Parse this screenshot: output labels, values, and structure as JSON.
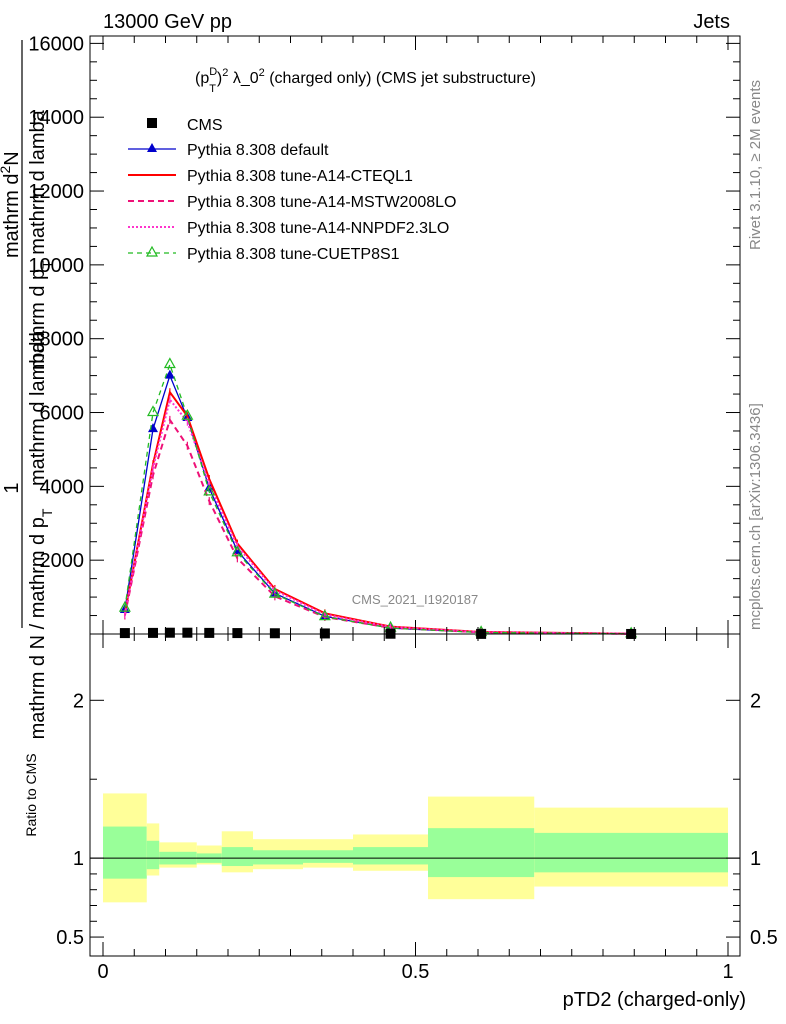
{
  "header": {
    "left": "13000 GeV pp",
    "right": "Jets"
  },
  "side": {
    "rivet": "Rivet 3.1.10, ≥ 2M events",
    "mcplots": "mcplots.cern.ch [arXiv:1306.3436]"
  },
  "watermark": "CMS_2021_I1920187",
  "ratio_ylabel": "Ratio to CMS",
  "colors": {
    "default": "#0000cc",
    "cteql1": "#ff0000",
    "mstw": "#ee1177",
    "nnpdf": "#ff33cc",
    "cuetp8s1": "#22bb22",
    "band_outer": "#ffff99",
    "band_inner": "#99ff99"
  },
  "chart_data": [
    {
      "type": "line",
      "title": "(p_T^D)^2 λ_0^2 (charged only) (CMS jet substructure)",
      "title_parts": {
        "p": "(p",
        "sub_T": "T",
        "sup_D": "D",
        "sup_2a": "2",
        "mid": " λ_0",
        "sup_2b": "2",
        "rest": " (charged only) (CMS jet substructure)"
      },
      "xlabel": "pTD2 (charged-only)",
      "ylabel_lines": [
        "mathrm d N / mathrm d p_T mathrm d lambda",
        "1",
        "mathrm d N / mathrm d p_T mathrm d lambda",
        "mathrm d^2N"
      ],
      "ylabel_fraction": {
        "num1": "1",
        "den1": "mathrm d N / mathrm d p",
        "den1_sub": "T",
        "num2_top": "mathrm d",
        "num2_sup": "2",
        "num2_rest": "N",
        "den2": "mathrm d p",
        "den2_sub": "T",
        "den2_rest": " mathrm d lamba"
      },
      "xlim": [
        0,
        1
      ],
      "ylim": [
        0,
        16200
      ],
      "yticks": [
        2000,
        4000,
        6000,
        8000,
        10000,
        12000,
        14000,
        16000
      ],
      "ytick_labels": [
        "2000",
        "4000",
        "6000",
        "8000",
        "10000",
        "12000",
        "14000",
        "16000"
      ],
      "legend_position": "top-left",
      "data_points": {
        "name": "CMS",
        "x": [
          0.035,
          0.08,
          0.107,
          0.135,
          0.17,
          0.215,
          0.275,
          0.355,
          0.46,
          0.605,
          0.845
        ],
        "y": [
          25,
          30,
          35,
          35,
          30,
          25,
          20,
          15,
          8,
          3,
          1
        ]
      },
      "series": [
        {
          "name": "Pythia 8.308 default",
          "key": "default",
          "dash": "",
          "marker": "triangle-filled",
          "x": [
            0.035,
            0.08,
            0.107,
            0.135,
            0.17,
            0.215,
            0.275,
            0.355,
            0.46,
            0.605,
            0.845
          ],
          "y": [
            650,
            5550,
            7000,
            5850,
            3950,
            2250,
            1100,
            480,
            160,
            40,
            5
          ]
        },
        {
          "name": "Pythia 8.308 tune-A14-CTEQL1",
          "key": "cteql1",
          "dash": "",
          "marker": "none",
          "x": [
            0.035,
            0.08,
            0.107,
            0.135,
            0.17,
            0.215,
            0.275,
            0.355,
            0.46,
            0.605,
            0.845
          ],
          "y": [
            560,
            4600,
            6550,
            5900,
            4200,
            2450,
            1220,
            560,
            200,
            55,
            7
          ]
        },
        {
          "name": "Pythia 8.308 tune-A14-MSTW2008LO",
          "key": "mstw",
          "dash": "6,4",
          "marker": "none",
          "x": [
            0.035,
            0.08,
            0.107,
            0.135,
            0.17,
            0.215,
            0.275,
            0.355,
            0.46,
            0.605,
            0.845
          ],
          "y": [
            500,
            4300,
            5800,
            5100,
            3600,
            2050,
            1020,
            460,
            170,
            45,
            6
          ]
        },
        {
          "name": "Pythia 8.308 tune-A14-NNPDF2.3LO",
          "key": "nnpdf",
          "dash": "2,2",
          "marker": "none",
          "x": [
            0.035,
            0.08,
            0.107,
            0.135,
            0.17,
            0.215,
            0.275,
            0.355,
            0.46,
            0.605,
            0.845
          ],
          "y": [
            540,
            4500,
            6350,
            5750,
            4050,
            2380,
            1180,
            530,
            190,
            50,
            6
          ]
        },
        {
          "name": "Pythia 8.308 tune-CUETP8S1",
          "key": "cuetp8s1",
          "dash": "5,4",
          "marker": "triangle-open",
          "x": [
            0.035,
            0.08,
            0.107,
            0.135,
            0.17,
            0.215,
            0.275,
            0.355,
            0.46,
            0.605,
            0.845
          ],
          "y": [
            700,
            6000,
            7300,
            5900,
            3850,
            2200,
            1080,
            470,
            160,
            40,
            5
          ]
        }
      ]
    },
    {
      "type": "area",
      "ylabel": "Ratio to CMS",
      "xlabel": "pTD2 (charged-only)",
      "xlim": [
        -0.04,
        1.04
      ],
      "ylim": [
        0.38,
        2.42
      ],
      "yticks": [
        0.5,
        1,
        2
      ],
      "ytick_labels": [
        "0.5",
        "1",
        "2"
      ],
      "xticks": [
        0,
        0.5,
        1
      ],
      "xtick_labels": [
        "0",
        "0.5",
        "1"
      ],
      "reference": 1,
      "bands": [
        {
          "x0": 0.0,
          "x1": 0.07,
          "outer": [
            0.72,
            1.41
          ],
          "inner": [
            0.87,
            1.2
          ]
        },
        {
          "x0": 0.07,
          "x1": 0.09,
          "outer": [
            0.89,
            1.22
          ],
          "inner": [
            0.93,
            1.11
          ]
        },
        {
          "x0": 0.09,
          "x1": 0.15,
          "outer": [
            0.94,
            1.1
          ],
          "inner": [
            0.96,
            1.04
          ]
        },
        {
          "x0": 0.15,
          "x1": 0.19,
          "outer": [
            0.96,
            1.08
          ],
          "inner": [
            0.97,
            1.03
          ]
        },
        {
          "x0": 0.19,
          "x1": 0.24,
          "outer": [
            0.91,
            1.17
          ],
          "inner": [
            0.95,
            1.07
          ]
        },
        {
          "x0": 0.24,
          "x1": 0.32,
          "outer": [
            0.93,
            1.12
          ],
          "inner": [
            0.96,
            1.05
          ]
        },
        {
          "x0": 0.32,
          "x1": 0.4,
          "outer": [
            0.94,
            1.12
          ],
          "inner": [
            0.97,
            1.05
          ]
        },
        {
          "x0": 0.4,
          "x1": 0.52,
          "outer": [
            0.92,
            1.15
          ],
          "inner": [
            0.96,
            1.07
          ]
        },
        {
          "x0": 0.52,
          "x1": 0.69,
          "outer": [
            0.74,
            1.39
          ],
          "inner": [
            0.88,
            1.19
          ]
        },
        {
          "x0": 0.69,
          "x1": 1.0,
          "outer": [
            0.82,
            1.32
          ],
          "inner": [
            0.91,
            1.16
          ]
        }
      ]
    }
  ]
}
